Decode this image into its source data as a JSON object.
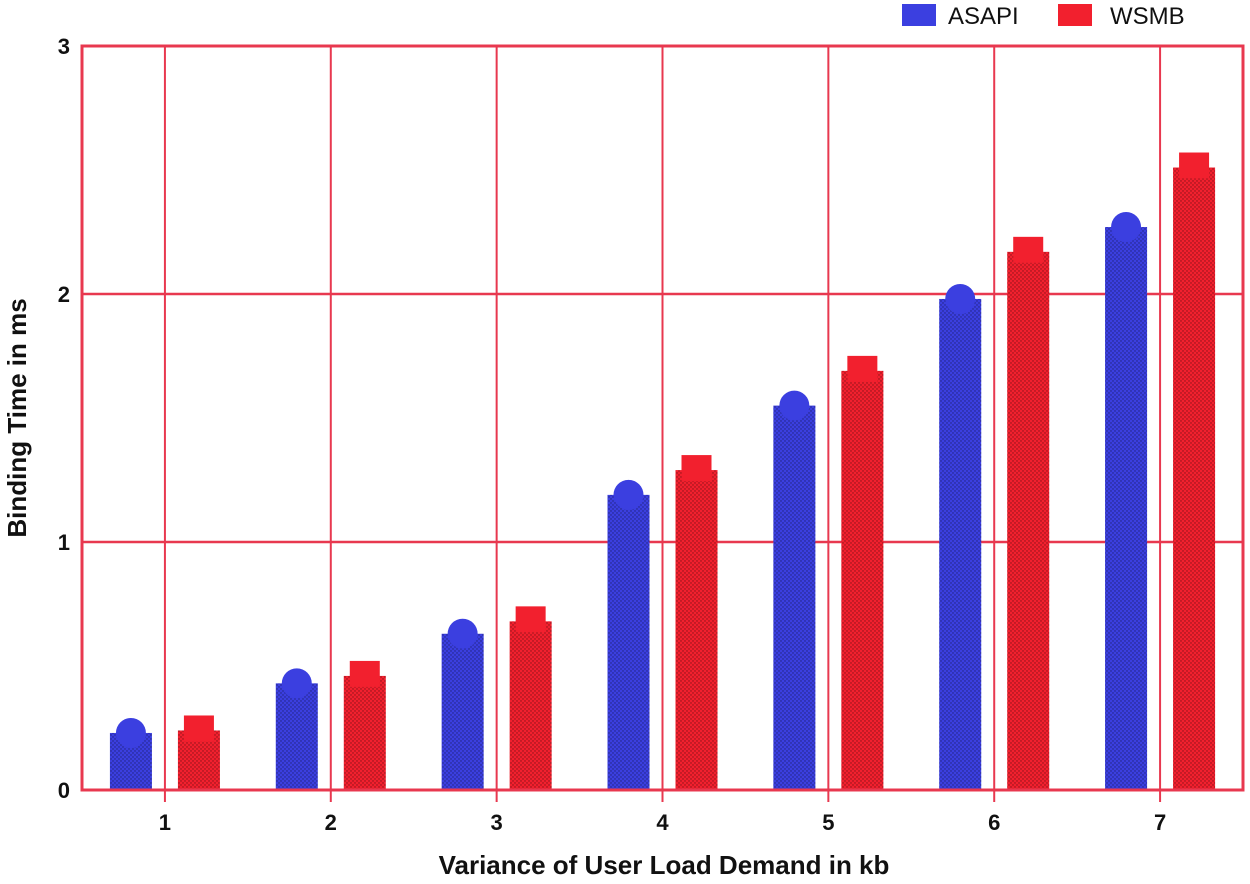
{
  "chart_data": {
    "type": "bar",
    "title": "",
    "xlabel": "Variance of User Load Demand in kb",
    "ylabel": "Binding Time in ms",
    "categories": [
      "1",
      "2",
      "3",
      "4",
      "5",
      "6",
      "7"
    ],
    "ylim": [
      0,
      3
    ],
    "yticks": [
      "0",
      "1",
      "2",
      "3"
    ],
    "grid": true,
    "legend_position": "top-right",
    "series": [
      {
        "name": "ASAPI",
        "color": "#3b3fe0",
        "marker": "circle",
        "values": [
          0.23,
          0.43,
          0.63,
          1.19,
          1.55,
          1.98,
          2.27
        ]
      },
      {
        "name": "WSMB",
        "color": "#f2202e",
        "marker": "square",
        "values": [
          0.24,
          0.46,
          0.68,
          1.29,
          1.69,
          2.17,
          2.51
        ]
      }
    ],
    "grid_color": "#e8384f"
  }
}
